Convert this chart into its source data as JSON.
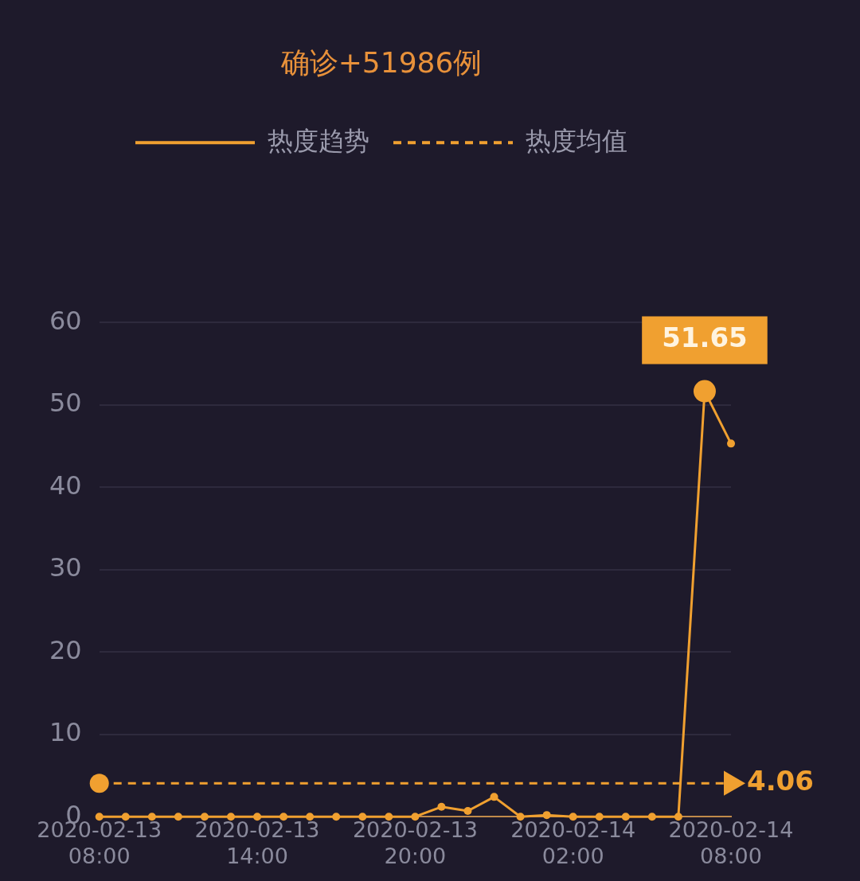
{
  "chart_data": {
    "type": "line",
    "title": "确诊+51986例",
    "x": [
      "2020-02-13T08:00",
      "2020-02-13T09:00",
      "2020-02-13T10:00",
      "2020-02-13T11:00",
      "2020-02-13T12:00",
      "2020-02-13T13:00",
      "2020-02-13T14:00",
      "2020-02-13T15:00",
      "2020-02-13T16:00",
      "2020-02-13T17:00",
      "2020-02-13T18:00",
      "2020-02-13T19:00",
      "2020-02-13T20:00",
      "2020-02-13T21:00",
      "2020-02-13T22:00",
      "2020-02-13T23:00",
      "2020-02-14T00:00",
      "2020-02-14T01:00",
      "2020-02-14T02:00",
      "2020-02-14T03:00",
      "2020-02-14T04:00",
      "2020-02-14T05:00",
      "2020-02-14T06:00",
      "2020-02-14T07:00",
      "2020-02-14T08:00"
    ],
    "series": [
      {
        "name": "热度趋势",
        "color": "#f0a030",
        "values": [
          0,
          0,
          0,
          0,
          0,
          0,
          0,
          0,
          0,
          0,
          0,
          0,
          0,
          1.2,
          0.7,
          2.4,
          0,
          0.2,
          0,
          0,
          0,
          0,
          0,
          51.65,
          45.3
        ],
        "value_labels": [
          null,
          null,
          null,
          null,
          null,
          null,
          null,
          null,
          null,
          null,
          null,
          null,
          null,
          null,
          null,
          null,
          null,
          null,
          null,
          null,
          null,
          null,
          null,
          "51.65",
          null
        ]
      },
      {
        "name": "热度均值",
        "type": "line",
        "color": "#f0a030",
        "line_style": "dashed",
        "x": [
          "2020-02-13T08:00",
          "2020-02-14T08:00"
        ],
        "values": [
          4.06,
          4.06
        ],
        "value_labels": [
          null,
          "4.06"
        ]
      }
    ],
    "xlim": [
      "2020-02-13T08:00",
      "2020-02-14T08:00"
    ],
    "xticks": [
      {
        "value": "2020-02-13T08:00",
        "label": "2020-02-13 08:00"
      },
      {
        "value": "2020-02-13T14:00",
        "label": "2020-02-13 14:00"
      },
      {
        "value": "2020-02-13T20:00",
        "label": "2020-02-13 20:00"
      },
      {
        "value": "2020-02-14T02:00",
        "label": "2020-02-14 02:00"
      },
      {
        "value": "2020-02-14T08:00",
        "label": "2020-02-14 08:00"
      }
    ],
    "ylim": [
      0,
      60
    ],
    "yticks": [
      0,
      10,
      20,
      30,
      40,
      50,
      60
    ],
    "grid": "y",
    "legend": "top",
    "marker": "circle",
    "line_style": "solid"
  }
}
